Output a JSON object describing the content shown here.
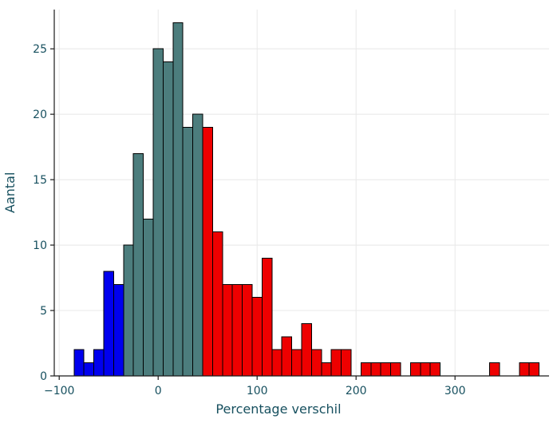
{
  "chart_data": {
    "type": "bar",
    "subtype": "histogram",
    "title": "",
    "xlabel": "Percentage verschil",
    "ylabel": "Aantal",
    "xlim": [
      -105,
      395
    ],
    "ylim": [
      0,
      28
    ],
    "grid": true,
    "legend": "none",
    "x_ticks": [
      {
        "value": -100,
        "label": "−100"
      },
      {
        "value": 0,
        "label": "0"
      },
      {
        "value": 100,
        "label": "100"
      },
      {
        "value": 200,
        "label": "200"
      },
      {
        "value": 300,
        "label": "300"
      }
    ],
    "y_ticks": [
      {
        "value": 0,
        "label": "0"
      },
      {
        "value": 5,
        "label": "5"
      },
      {
        "value": 10,
        "label": "10"
      },
      {
        "value": 15,
        "label": "15"
      },
      {
        "value": 20,
        "label": "20"
      },
      {
        "value": 25,
        "label": "25"
      }
    ],
    "bin_start": -85,
    "bin_width": 10,
    "counts": [
      2,
      1,
      2,
      8,
      7,
      10,
      17,
      12,
      25,
      24,
      27,
      19,
      20,
      19,
      11,
      7,
      7,
      7,
      6,
      9,
      2,
      3,
      2,
      4,
      2,
      1,
      2,
      2,
      0,
      1,
      1,
      1,
      1,
      0,
      1,
      1,
      1,
      0,
      0,
      0,
      0,
      0,
      1,
      0,
      0,
      1,
      1
    ],
    "groups": [
      {
        "name": "negative",
        "from": -85,
        "to": -35,
        "color": "#0000ee"
      },
      {
        "name": "center",
        "from": -35,
        "to": 45,
        "color": "#4c7d7d"
      },
      {
        "name": "positive",
        "from": 45,
        "to": 385,
        "color": "#ee0000"
      }
    ],
    "bar_outline": "#000000"
  },
  "theme": {
    "background": "#ffffff",
    "text_color": "#17505f",
    "grid_color": "#e8e8e8",
    "spine_color": "#1a1a1a"
  }
}
